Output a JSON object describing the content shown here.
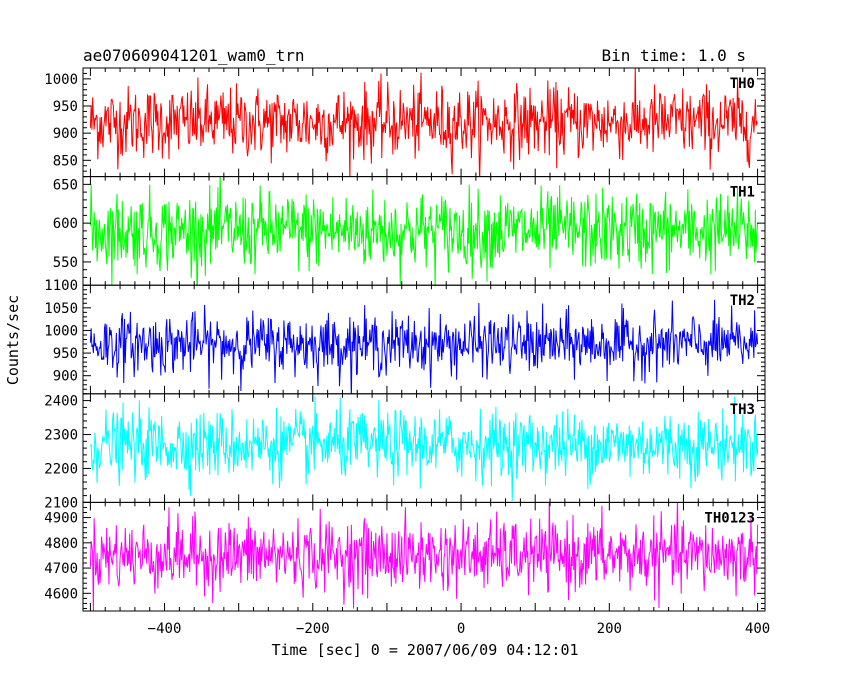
{
  "header": {
    "title": "ae070609041201_wam0_trn",
    "bin_time": "Bin time: 1.0 s"
  },
  "chart_data": {
    "type": "line",
    "xlabel": "Time [sec] 0 = 2007/06/09 04:12:01",
    "ylabel": "Counts/sec",
    "xlim": [
      -510,
      410
    ],
    "x_ticks": [
      -400,
      -200,
      0,
      200,
      400
    ],
    "x_tick_labels": [
      "−400",
      "−200",
      "0",
      "200",
      "400"
    ],
    "x_data_range": [
      -500,
      400
    ],
    "bin_size": 1.0,
    "panels": [
      {
        "name": "TH0",
        "color": "#ff0000",
        "ylim": [
          820,
          1020
        ],
        "y_ticks": [
          850,
          900,
          950,
          1000
        ],
        "y_tick_labels": [
          "850",
          "900",
          "950",
          "1000"
        ],
        "mean": 920,
        "std": 33
      },
      {
        "name": "TH1",
        "color": "#00ff00",
        "ylim": [
          520,
          660
        ],
        "y_ticks": [
          550,
          600,
          650
        ],
        "y_tick_labels": [
          "550",
          "600",
          "650"
        ],
        "mean": 590,
        "std": 25
      },
      {
        "name": "TH2",
        "color": "#0000ff",
        "ylim": [
          860,
          1100
        ],
        "y_ticks": [
          900,
          950,
          1000,
          1050,
          1100
        ],
        "y_tick_labels": [
          "900",
          "950",
          "1000",
          "1050",
          "1100"
        ],
        "mean": 970,
        "std": 33
      },
      {
        "name": "TH3",
        "color": "#00ffff",
        "ylim": [
          2100,
          2420
        ],
        "y_ticks": [
          2100,
          2200,
          2300,
          2400
        ],
        "y_tick_labels": [
          "2100",
          "2200",
          "2300",
          "2400"
        ],
        "mean": 2270,
        "std": 50
      },
      {
        "name": "TH0123",
        "color": "#ff00ff",
        "ylim": [
          4530,
          4960
        ],
        "y_ticks": [
          4600,
          4700,
          4800,
          4900
        ],
        "y_tick_labels": [
          "4600",
          "4700",
          "4800",
          "4900"
        ],
        "mean": 4750,
        "std": 70
      }
    ]
  }
}
